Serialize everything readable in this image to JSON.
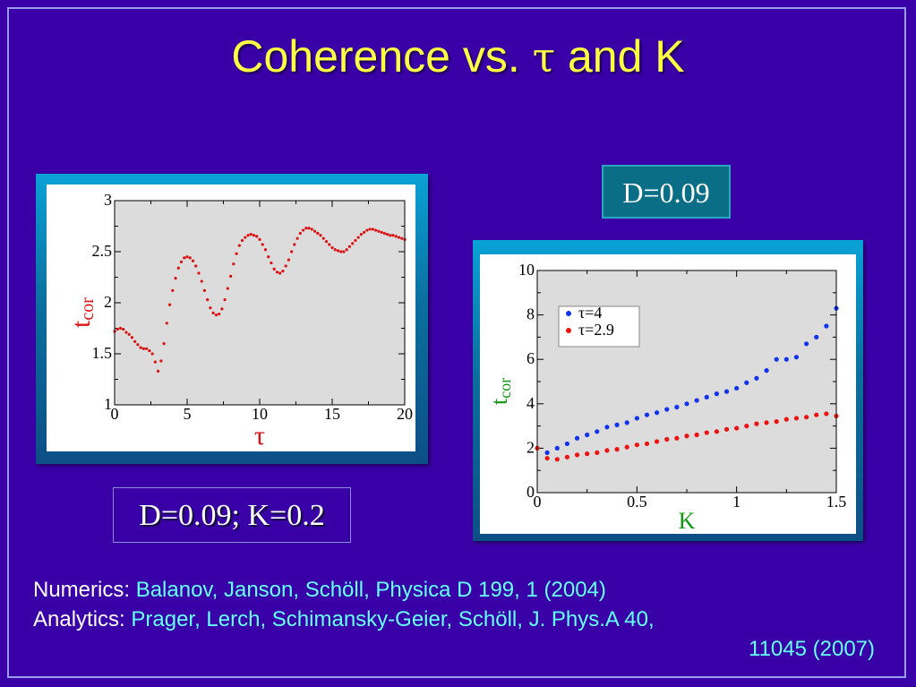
{
  "slide": {
    "title_prefix": "Coherence vs. ",
    "title_symbol": "τ",
    "title_suffix": " and K",
    "label_d": "D=0.09",
    "label_dk": "D=0.09; K=0.2",
    "colors": {
      "background": "#3a00a8",
      "title": "#ffff44",
      "citation": "#66ffff"
    }
  },
  "references": {
    "numerics_label": "Numerics: ",
    "numerics_cite": "Balanov, Janson, Schöll, Physica D 199, 1 (2004)",
    "analytics_label": "Analytics:  ",
    "analytics_cite": "Prager, Lerch, Schimansky-Geier, Schöll, J. Phys.A 40,",
    "analytics_cite_cont": "11045  (2007)"
  },
  "chart_data": [
    {
      "type": "scatter",
      "title": "",
      "xlabel": "τ",
      "ylabel": "t",
      "ylabel_sub": "cor",
      "xlim": [
        0,
        20
      ],
      "ylim": [
        1,
        3
      ],
      "xticks": [
        "0",
        "5",
        "10",
        "15",
        "20"
      ],
      "yticks": [
        "1",
        "1.5",
        "2",
        "2.5",
        "3"
      ],
      "grid": false,
      "colors": {
        "points": "#dd1111",
        "plot_bg": "#dcdcdc",
        "label": "#dd1111"
      },
      "series": [
        {
          "points": [
            [
              0.0,
              1.72
            ],
            [
              0.2,
              1.74
            ],
            [
              0.4,
              1.75
            ],
            [
              0.6,
              1.74
            ],
            [
              0.8,
              1.71
            ],
            [
              1.0,
              1.69
            ],
            [
              1.2,
              1.66
            ],
            [
              1.4,
              1.62
            ],
            [
              1.6,
              1.59
            ],
            [
              1.8,
              1.56
            ],
            [
              2.0,
              1.55
            ],
            [
              2.2,
              1.55
            ],
            [
              2.4,
              1.53
            ],
            [
              2.6,
              1.5
            ],
            [
              2.8,
              1.42
            ],
            [
              3.0,
              1.33
            ],
            [
              3.2,
              1.43
            ],
            [
              3.4,
              1.6
            ],
            [
              3.6,
              1.8
            ],
            [
              3.8,
              1.98
            ],
            [
              4.0,
              2.12
            ],
            [
              4.2,
              2.24
            ],
            [
              4.4,
              2.34
            ],
            [
              4.6,
              2.4
            ],
            [
              4.8,
              2.44
            ],
            [
              5.0,
              2.45
            ],
            [
              5.2,
              2.44
            ],
            [
              5.4,
              2.41
            ],
            [
              5.6,
              2.36
            ],
            [
              5.8,
              2.29
            ],
            [
              6.0,
              2.21
            ],
            [
              6.2,
              2.12
            ],
            [
              6.4,
              2.03
            ],
            [
              6.6,
              1.95
            ],
            [
              6.8,
              1.9
            ],
            [
              7.0,
              1.88
            ],
            [
              7.2,
              1.89
            ],
            [
              7.4,
              1.94
            ],
            [
              7.6,
              2.03
            ],
            [
              7.8,
              2.14
            ],
            [
              8.0,
              2.26
            ],
            [
              8.2,
              2.38
            ],
            [
              8.4,
              2.48
            ],
            [
              8.6,
              2.56
            ],
            [
              8.8,
              2.61
            ],
            [
              9.0,
              2.64
            ],
            [
              9.2,
              2.66
            ],
            [
              9.4,
              2.67
            ],
            [
              9.6,
              2.66
            ],
            [
              9.8,
              2.65
            ],
            [
              10.0,
              2.62
            ],
            [
              10.2,
              2.57
            ],
            [
              10.4,
              2.52
            ],
            [
              10.6,
              2.45
            ],
            [
              10.8,
              2.39
            ],
            [
              11.0,
              2.33
            ],
            [
              11.2,
              2.3
            ],
            [
              11.4,
              2.29
            ],
            [
              11.6,
              2.31
            ],
            [
              11.8,
              2.36
            ],
            [
              12.0,
              2.42
            ],
            [
              12.2,
              2.5
            ],
            [
              12.4,
              2.57
            ],
            [
              12.6,
              2.63
            ],
            [
              12.8,
              2.68
            ],
            [
              13.0,
              2.71
            ],
            [
              13.2,
              2.73
            ],
            [
              13.4,
              2.73
            ],
            [
              13.6,
              2.72
            ],
            [
              13.8,
              2.7
            ],
            [
              14.0,
              2.68
            ],
            [
              14.2,
              2.66
            ],
            [
              14.4,
              2.63
            ],
            [
              14.6,
              2.6
            ],
            [
              14.8,
              2.57
            ],
            [
              15.0,
              2.54
            ],
            [
              15.2,
              2.52
            ],
            [
              15.4,
              2.51
            ],
            [
              15.6,
              2.5
            ],
            [
              15.8,
              2.5
            ],
            [
              16.0,
              2.52
            ],
            [
              16.2,
              2.55
            ],
            [
              16.4,
              2.58
            ],
            [
              16.6,
              2.61
            ],
            [
              16.8,
              2.64
            ],
            [
              17.0,
              2.67
            ],
            [
              17.2,
              2.69
            ],
            [
              17.4,
              2.71
            ],
            [
              17.6,
              2.72
            ],
            [
              17.8,
              2.72
            ],
            [
              18.0,
              2.71
            ],
            [
              18.2,
              2.7
            ],
            [
              18.4,
              2.69
            ],
            [
              18.6,
              2.68
            ],
            [
              18.8,
              2.67
            ],
            [
              19.0,
              2.66
            ],
            [
              19.2,
              2.66
            ],
            [
              19.4,
              2.65
            ],
            [
              19.6,
              2.64
            ],
            [
              19.8,
              2.63
            ],
            [
              20.0,
              2.62
            ]
          ]
        }
      ]
    },
    {
      "type": "scatter",
      "title": "",
      "xlabel": "K",
      "ylabel": "t",
      "ylabel_sub": "cor",
      "xlim": [
        0,
        1.5
      ],
      "ylim": [
        0,
        10
      ],
      "xticks": [
        "0",
        "0.5",
        "1",
        "1.5"
      ],
      "yticks": [
        "0",
        "2",
        "4",
        "6",
        "8",
        "10"
      ],
      "grid": false,
      "legend_position": "top-left",
      "colors": {
        "plot_bg": "#dcdcdc",
        "label": "#119911"
      },
      "series": [
        {
          "name": "τ=4",
          "color": "#1133ee",
          "points": [
            [
              0.05,
              1.8
            ],
            [
              0.1,
              2.0
            ],
            [
              0.15,
              2.2
            ],
            [
              0.2,
              2.45
            ],
            [
              0.25,
              2.6
            ],
            [
              0.3,
              2.75
            ],
            [
              0.35,
              2.95
            ],
            [
              0.4,
              3.05
            ],
            [
              0.45,
              3.15
            ],
            [
              0.5,
              3.35
            ],
            [
              0.55,
              3.5
            ],
            [
              0.6,
              3.6
            ],
            [
              0.65,
              3.75
            ],
            [
              0.7,
              3.85
            ],
            [
              0.75,
              4.0
            ],
            [
              0.8,
              4.15
            ],
            [
              0.85,
              4.3
            ],
            [
              0.9,
              4.45
            ],
            [
              0.95,
              4.55
            ],
            [
              1.0,
              4.7
            ],
            [
              1.05,
              4.95
            ],
            [
              1.1,
              5.15
            ],
            [
              1.15,
              5.5
            ],
            [
              1.2,
              6.0
            ],
            [
              1.25,
              6.0
            ],
            [
              1.3,
              6.1
            ],
            [
              1.35,
              6.7
            ],
            [
              1.4,
              7.0
            ],
            [
              1.45,
              7.5
            ],
            [
              1.5,
              8.3
            ]
          ]
        },
        {
          "name": "τ=2.9",
          "color": "#ee1111",
          "points": [
            [
              0.0,
              2.0
            ],
            [
              0.05,
              1.55
            ],
            [
              0.1,
              1.5
            ],
            [
              0.15,
              1.6
            ],
            [
              0.2,
              1.7
            ],
            [
              0.25,
              1.75
            ],
            [
              0.3,
              1.8
            ],
            [
              0.35,
              1.9
            ],
            [
              0.4,
              1.95
            ],
            [
              0.45,
              2.05
            ],
            [
              0.5,
              2.15
            ],
            [
              0.55,
              2.2
            ],
            [
              0.6,
              2.3
            ],
            [
              0.65,
              2.4
            ],
            [
              0.7,
              2.45
            ],
            [
              0.75,
              2.55
            ],
            [
              0.8,
              2.6
            ],
            [
              0.85,
              2.7
            ],
            [
              0.9,
              2.75
            ],
            [
              0.95,
              2.85
            ],
            [
              1.0,
              2.9
            ],
            [
              1.05,
              3.0
            ],
            [
              1.1,
              3.1
            ],
            [
              1.15,
              3.15
            ],
            [
              1.2,
              3.2
            ],
            [
              1.25,
              3.3
            ],
            [
              1.3,
              3.35
            ],
            [
              1.35,
              3.4
            ],
            [
              1.4,
              3.5
            ],
            [
              1.45,
              3.55
            ],
            [
              1.5,
              3.45
            ]
          ]
        }
      ]
    }
  ]
}
